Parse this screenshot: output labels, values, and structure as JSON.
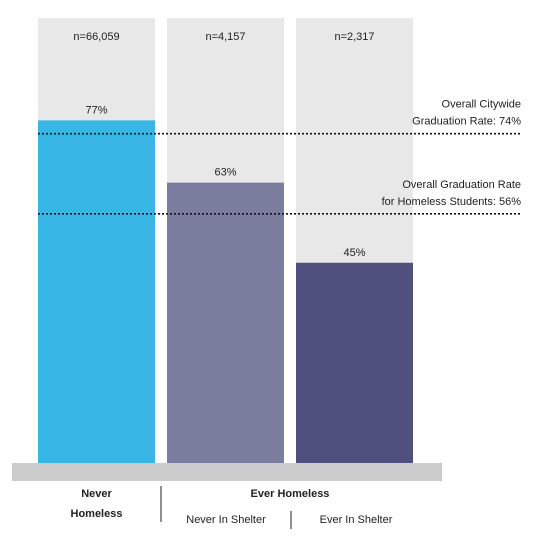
{
  "chart_data": {
    "type": "bar",
    "categories": [
      "Never Homeless",
      "Never In Shelter",
      "Ever In Shelter"
    ],
    "values": [
      77,
      63,
      45
    ],
    "value_labels": [
      "77%",
      "63%",
      "45%"
    ],
    "sample_sizes": [
      "n=66,059",
      "n=4,157",
      "n=2,317"
    ],
    "ylim": [
      0,
      100
    ],
    "unit": "%",
    "colors": {
      "bars": [
        "#38b6e6",
        "#7b7d9e",
        "#50507e"
      ],
      "background_bar": "#e8e8e8",
      "baseline": "#cccccc",
      "reference_line": "#111111"
    },
    "reference_lines": [
      {
        "value": 74,
        "label_lines": [
          "Overall Citywide",
          "Graduation Rate: 74%"
        ]
      },
      {
        "value": 56,
        "label_lines": [
          "Overall Graduation Rate",
          "for Homeless Students: 56%"
        ]
      }
    ],
    "x_groups": {
      "never_homeless": {
        "label_lines": [
          "Never",
          "Homeless"
        ]
      },
      "ever_homeless": {
        "label": "Ever Homeless",
        "sublabels": [
          "Never In Shelter",
          "Ever In Shelter"
        ]
      }
    },
    "grid": false,
    "legend": "none"
  }
}
